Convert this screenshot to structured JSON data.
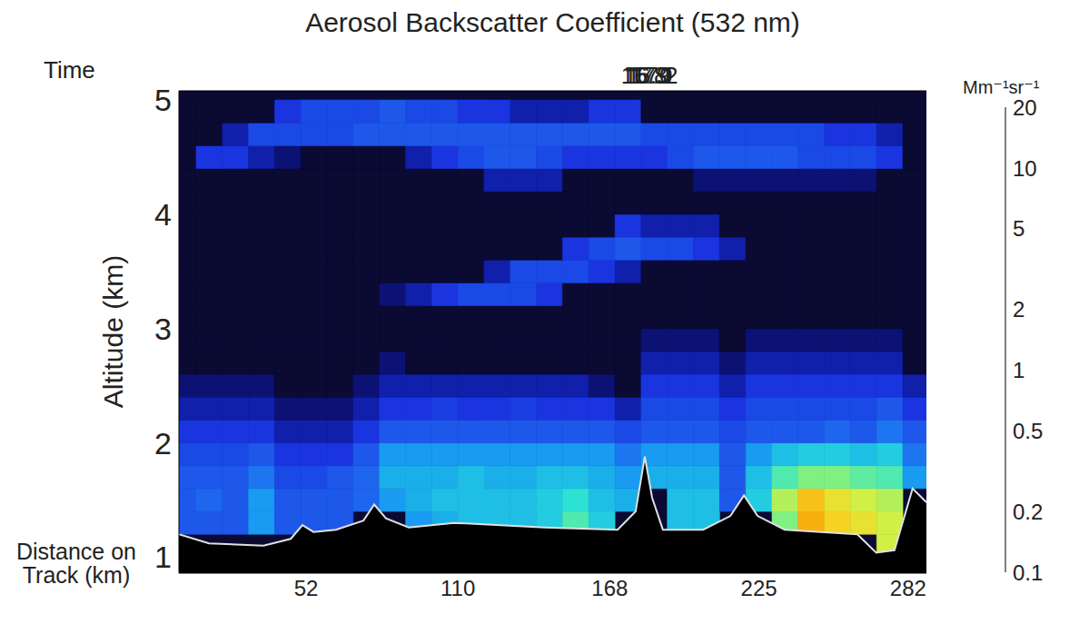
{
  "chart_data": {
    "type": "heatmap",
    "title": "Aerosol Backscatter Coefficient (532 nm)",
    "x_label": "Distance on Track (km)",
    "y_label": "Altitude (km)",
    "x2_label": "Time",
    "xlim": [
      3.4,
      289
    ],
    "xticks": [
      52,
      110,
      168,
      225,
      282
    ],
    "x2lim": [
      16.7,
      17.21
    ],
    "x2ticks": [
      16.8,
      16.9,
      {
        "value": 17,
        "label": "17.0"
      },
      17.1,
      17.2
    ],
    "ylim": [
      0.86,
      5.08
    ],
    "yticks": [
      1,
      2,
      3,
      4,
      5
    ],
    "grid": false,
    "x_bins": [
      0,
      10,
      20,
      30,
      40,
      50,
      60,
      70,
      80,
      90,
      100,
      110,
      120,
      130,
      140,
      150,
      160,
      170,
      180,
      190,
      200,
      210,
      220,
      230,
      240,
      250,
      260,
      270,
      280,
      290
    ],
    "y_bins": [
      1.0,
      1.2,
      1.4,
      1.6,
      1.8,
      2.0,
      2.2,
      2.4,
      2.6,
      2.8,
      3.0,
      3.2,
      3.4,
      3.6,
      3.8,
      4.0,
      4.2,
      4.4,
      4.6,
      4.8,
      5.0
    ],
    "cells": [
      [
        null,
        null,
        null,
        null,
        null,
        null,
        null,
        null,
        null,
        null,
        null,
        null,
        null,
        null,
        null,
        null,
        null,
        null,
        null,
        null,
        null,
        null,
        null,
        null,
        null,
        null,
        null,
        2,
        null
      ],
      [
        0.3,
        0.3,
        0.3,
        0.5,
        0.3,
        0.3,
        0.3,
        null,
        null,
        0.5,
        0.6,
        0.7,
        0.7,
        0.7,
        0.8,
        1.2,
        0.8,
        null,
        null,
        0.7,
        0.7,
        null,
        null,
        1.5,
        4,
        3,
        2.5,
        2,
        null
      ],
      [
        0.3,
        0.35,
        0.3,
        0.5,
        0.3,
        0.3,
        0.3,
        0.35,
        0.5,
        0.6,
        0.7,
        0.7,
        0.7,
        0.7,
        0.8,
        1,
        0.7,
        0.6,
        null,
        0.7,
        0.7,
        0.3,
        0.8,
        1.8,
        3.5,
        2.5,
        2,
        1.8,
        null
      ],
      [
        0.3,
        0.3,
        0.3,
        0.4,
        0.25,
        0.25,
        0.3,
        0.35,
        0.6,
        0.6,
        0.6,
        0.7,
        0.6,
        0.6,
        0.7,
        0.7,
        0.6,
        0.5,
        0.6,
        0.6,
        0.6,
        0.3,
        0.7,
        1.2,
        1.5,
        1.5,
        1.3,
        1.2,
        0.5
      ],
      [
        0.25,
        0.25,
        0.25,
        0.3,
        0.2,
        0.2,
        0.2,
        0.3,
        0.5,
        0.5,
        0.5,
        0.5,
        0.5,
        0.5,
        0.5,
        0.5,
        0.5,
        0.4,
        0.5,
        0.5,
        0.5,
        0.3,
        0.5,
        0.7,
        0.8,
        0.8,
        0.7,
        0.8,
        0.4
      ],
      [
        0.2,
        0.2,
        0.2,
        0.2,
        0.15,
        0.15,
        0.15,
        0.2,
        0.3,
        0.3,
        0.3,
        0.3,
        0.3,
        0.3,
        0.3,
        0.3,
        0.3,
        0.25,
        0.3,
        0.3,
        0.3,
        0.25,
        0.3,
        0.3,
        0.3,
        0.35,
        0.3,
        0.4,
        0.3
      ],
      [
        0.15,
        0.15,
        0.15,
        0.15,
        0.12,
        0.12,
        0.12,
        0.15,
        0.2,
        0.2,
        0.22,
        0.2,
        0.2,
        0.22,
        0.2,
        0.2,
        0.2,
        0.15,
        0.25,
        0.25,
        0.25,
        0.2,
        0.25,
        0.25,
        0.25,
        0.25,
        0.25,
        0.3,
        0.2
      ],
      [
        0.12,
        0.12,
        0.12,
        0.12,
        0.1,
        0.1,
        0.1,
        0.12,
        0.15,
        0.15,
        0.15,
        0.15,
        0.15,
        0.15,
        0.15,
        0.15,
        0.12,
        0.1,
        0.2,
        0.2,
        0.2,
        0.15,
        0.2,
        0.2,
        0.2,
        0.2,
        0.2,
        0.2,
        0.15
      ],
      [
        0.1,
        0.1,
        0.1,
        0.1,
        0.1,
        0.1,
        0.1,
        0.1,
        0.12,
        0.1,
        0.1,
        0.1,
        0.1,
        0.1,
        0.1,
        0.1,
        0.1,
        0.1,
        0.15,
        0.15,
        0.15,
        0.12,
        0.15,
        0.15,
        0.15,
        0.15,
        0.15,
        0.15,
        0.1
      ],
      [
        0.1,
        0.1,
        0.1,
        0.1,
        0.1,
        0.1,
        0.1,
        0.1,
        0.1,
        0.1,
        0.1,
        0.1,
        0.1,
        0.1,
        0.1,
        0.1,
        0.1,
        0.1,
        0.12,
        0.12,
        0.12,
        0.1,
        0.12,
        0.12,
        0.12,
        0.12,
        0.12,
        0.12,
        0.1
      ],
      [
        0.1,
        0.1,
        0.1,
        0.1,
        0.1,
        0.1,
        0.1,
        0.1,
        0.1,
        0.1,
        0.1,
        0.1,
        0.1,
        0.1,
        0.1,
        0.1,
        0.1,
        0.1,
        0.1,
        0.1,
        0.1,
        0.1,
        0.1,
        0.1,
        0.1,
        0.1,
        0.1,
        0.1,
        0.1
      ],
      [
        0.1,
        0.1,
        0.1,
        0.1,
        0.1,
        0.1,
        0.1,
        0.1,
        0.12,
        0.15,
        0.2,
        0.25,
        0.25,
        0.25,
        0.2,
        0.1,
        0.1,
        0.1,
        0.1,
        0.1,
        0.1,
        0.1,
        0.1,
        0.1,
        0.1,
        0.1,
        0.1,
        0.1,
        0.1
      ],
      [
        0.1,
        0.1,
        0.1,
        0.1,
        0.1,
        0.1,
        0.1,
        0.1,
        0.1,
        0.1,
        0.1,
        0.1,
        0.15,
        0.25,
        0.25,
        0.25,
        0.2,
        0.15,
        0.1,
        0.1,
        0.1,
        0.1,
        0.1,
        0.1,
        0.1,
        0.1,
        0.1,
        0.1,
        0.1
      ],
      [
        0.1,
        0.1,
        0.1,
        0.1,
        0.1,
        0.1,
        0.1,
        0.1,
        0.1,
        0.1,
        0.1,
        0.1,
        0.1,
        0.1,
        0.1,
        0.2,
        0.25,
        0.3,
        0.25,
        0.25,
        0.2,
        0.15,
        0.1,
        0.1,
        0.1,
        0.1,
        0.1,
        0.1,
        0.1
      ],
      [
        0.1,
        0.1,
        0.1,
        0.1,
        0.1,
        0.1,
        0.1,
        0.1,
        0.1,
        0.1,
        0.1,
        0.1,
        0.1,
        0.1,
        0.1,
        0.1,
        0.1,
        0.2,
        0.15,
        0.15,
        0.15,
        0.1,
        0.1,
        0.1,
        0.1,
        0.1,
        0.1,
        0.1,
        0.1
      ],
      [
        0.1,
        0.1,
        0.1,
        0.1,
        0.1,
        0.1,
        0.1,
        0.1,
        0.1,
        0.1,
        0.1,
        0.1,
        0.1,
        0.1,
        0.1,
        0.1,
        0.1,
        0.1,
        0.1,
        0.1,
        0.1,
        0.1,
        0.1,
        0.1,
        0.1,
        0.1,
        0.1,
        0.1,
        0.1
      ],
      [
        0.1,
        0.1,
        0.1,
        0.1,
        0.1,
        0.1,
        0.1,
        0.1,
        0.1,
        0.1,
        0.1,
        0.1,
        0.15,
        0.15,
        0.15,
        0.1,
        0.1,
        0.1,
        0.1,
        0.1,
        0.12,
        0.12,
        0.12,
        0.12,
        0.12,
        0.12,
        0.12,
        0.1,
        0.1
      ],
      [
        0.1,
        0.2,
        0.2,
        0.15,
        0.12,
        0.1,
        0.1,
        0.1,
        0.1,
        0.15,
        0.2,
        0.25,
        0.3,
        0.3,
        0.25,
        0.2,
        0.2,
        0.2,
        0.2,
        0.25,
        0.3,
        0.3,
        0.3,
        0.3,
        0.25,
        0.25,
        0.25,
        0.2,
        0.1
      ],
      [
        0.1,
        0.1,
        0.15,
        0.25,
        0.25,
        0.25,
        0.25,
        0.3,
        0.3,
        0.3,
        0.3,
        0.3,
        0.3,
        0.3,
        0.3,
        0.3,
        0.3,
        0.3,
        0.25,
        0.25,
        0.25,
        0.25,
        0.25,
        0.25,
        0.25,
        0.2,
        0.2,
        0.15,
        0.1
      ],
      [
        0.1,
        0.1,
        0.1,
        0.1,
        0.2,
        0.25,
        0.25,
        0.25,
        0.3,
        0.25,
        0.25,
        0.2,
        0.2,
        0.15,
        0.15,
        0.15,
        0.2,
        0.2,
        0.1,
        0.1,
        0.1,
        0.1,
        0.1,
        0.1,
        0.1,
        0.1,
        0.1,
        0.1,
        0.1
      ]
    ],
    "surface": {
      "color": "#e0e0e0",
      "x": [
        3.4,
        14.9,
        35.7,
        46.1,
        50.6,
        54.8,
        63.4,
        73.9,
        78,
        82.5,
        91.2,
        108.5,
        143.2,
        171,
        177.9,
        181.4,
        184.2,
        188.3,
        203.7,
        214.1,
        219.3,
        224.5,
        234.9,
        262.6,
        269.8,
        276.8,
        283.7,
        289
      ],
      "values": [
        1.2,
        1.12,
        1.1,
        1.16,
        1.28,
        1.22,
        1.24,
        1.32,
        1.46,
        1.34,
        1.26,
        1.3,
        1.26,
        1.24,
        1.4,
        1.88,
        1.52,
        1.24,
        1.24,
        1.36,
        1.54,
        1.36,
        1.24,
        1.2,
        1.04,
        1.06,
        1.6,
        1.48
      ]
    },
    "colorbar": {
      "label": "Mm⁻¹sr⁻¹",
      "range": [
        0.1,
        20
      ],
      "ticks": [
        0.1,
        0.2,
        0.5,
        1,
        2,
        5,
        10,
        20
      ],
      "log": true
    }
  }
}
